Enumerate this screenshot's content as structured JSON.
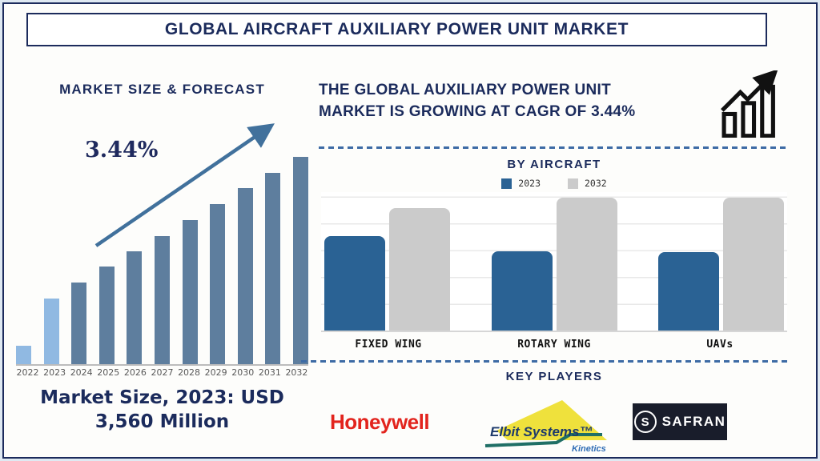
{
  "banner": {
    "title": "GLOBAL AIRCRAFT AUXILIARY POWER UNIT MARKET"
  },
  "left_panel": {
    "heading": "MARKET SIZE & FORECAST",
    "cagr_annotation": "3.44%",
    "market_size_caption": "Market Size, 2023: USD 3,560 Million"
  },
  "right_panel": {
    "headline": "THE GLOBAL AUXILIARY POWER UNIT MARKET IS GROWING AT CAGR OF 3.44%",
    "growth_icon": "bar-chart-rising-arrow-icon",
    "by_aircraft_heading": "BY AIRCRAFT",
    "key_players_heading": "KEY PLAYERS",
    "key_players": [
      {
        "name": "Honeywell",
        "logo_text": "Honeywell",
        "color": "#e2241d"
      },
      {
        "name": "Elbit Systems Kinetics",
        "logo_text": "Elbit Systems™",
        "sub_text": "Kinetics",
        "colors": {
          "triangle": "#efe13c",
          "text": "#1d3a6b",
          "swoosh": "#1f6f66",
          "sub": "#2e6cb5"
        }
      },
      {
        "name": "Safran",
        "logo_text": "SAFRAN",
        "monogram": "S",
        "colors": {
          "background": "#191d2b",
          "text": "#ffffff"
        }
      }
    ]
  },
  "colors": {
    "navy_text": "#1b2b5c",
    "page_border": "#1c2b5c",
    "dashed_divider": "#3d6ba5",
    "trend_arrow": "#41719c",
    "gridline": "#e9e9e9"
  },
  "chart_data": [
    {
      "type": "bar",
      "title": "MARKET SIZE & FORECAST",
      "categories": [
        "2022",
        "2023",
        "2024",
        "2025",
        "2026",
        "2027",
        "2028",
        "2029",
        "2030",
        "2031",
        "2032"
      ],
      "values": [
        23,
        82,
        102,
        122,
        141,
        160,
        180,
        200,
        220,
        239,
        259
      ],
      "values_note": "stylized relative bar heights in px; no y-axis shown",
      "known_value_2023_usd_million": 3560,
      "cagr_percent": 3.44,
      "annotation": "3.44%",
      "xlabel": "",
      "ylabel": "",
      "grid": false,
      "colors": {
        "default": "#5e7e9e",
        "highlight": "#90b9e2"
      },
      "highlight_categories": [
        "2022",
        "2023"
      ]
    },
    {
      "type": "bar",
      "title": "BY AIRCRAFT",
      "categories": [
        "FIXED WING",
        "ROTARY WING",
        "UAVs"
      ],
      "series": [
        {
          "name": "2023",
          "values": [
            118,
            99,
            98
          ],
          "color": "#2a6294"
        },
        {
          "name": "2032",
          "values": [
            153,
            166,
            166
          ],
          "color": "#cbcbcb"
        }
      ],
      "values_note": "stylized relative bar heights in px; no y-axis shown",
      "ylim": [
        0,
        175
      ],
      "grid": true,
      "legend_position": "top"
    }
  ]
}
